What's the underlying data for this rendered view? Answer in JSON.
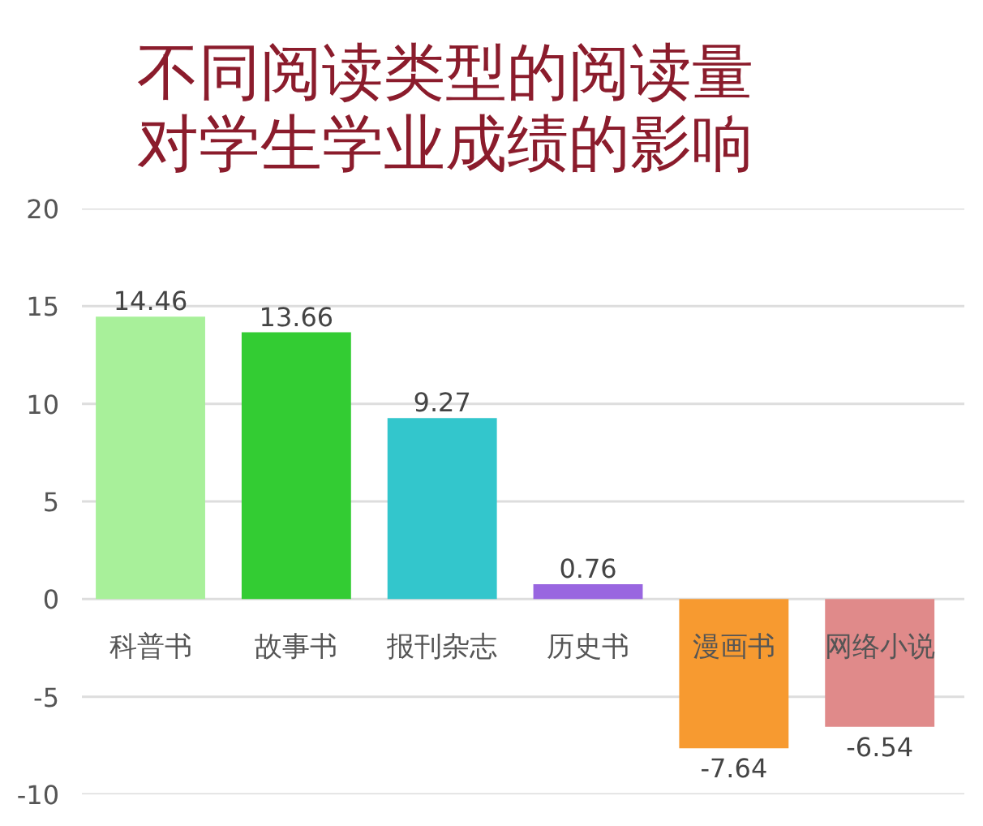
{
  "chart_data": {
    "type": "bar",
    "title": "不同阅读类型的阅读量对学生学业成绩的影响",
    "categories": [
      "科普书",
      "故事书",
      "报刊杂志",
      "历史书",
      "漫画书",
      "网络小说"
    ],
    "values": [
      14.46,
      13.66,
      9.27,
      0.76,
      -7.64,
      -6.54
    ],
    "colors": [
      "#a8f09a",
      "#33cc33",
      "#33c6cc",
      "#9966e0",
      "#f79a30",
      "#e08a8a"
    ],
    "ylim": [
      -10,
      20
    ],
    "yticks": [
      -10,
      -5,
      0,
      5,
      10,
      15,
      20
    ],
    "grid": "y",
    "data_labels": true
  }
}
